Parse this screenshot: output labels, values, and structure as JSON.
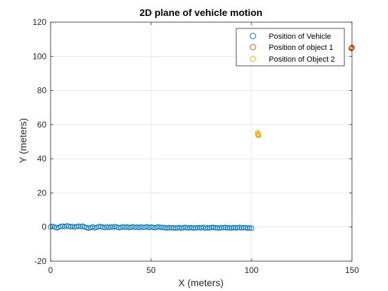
{
  "chart_data": {
    "type": "scatter",
    "title": "2D plane of vehicle motion",
    "xlabel": "X (meters)",
    "ylabel": "Y (meters)",
    "xlim": [
      0,
      150
    ],
    "ylim": [
      -20,
      120
    ],
    "xticks": [
      "0",
      "50",
      "100",
      "150"
    ],
    "yticks": [
      "-20",
      "0",
      "20",
      "40",
      "60",
      "80",
      "100",
      "120"
    ],
    "grid": true,
    "legend_position": "top-right",
    "series": [
      {
        "name": "Position of Vehicle",
        "color": "#0072BD",
        "marker": "circle",
        "x": [
          0,
          1,
          2,
          3,
          4,
          5,
          6,
          7,
          8,
          9,
          10,
          11,
          12,
          13,
          14,
          15,
          16,
          17,
          18,
          19,
          20,
          21,
          22,
          23,
          24,
          25,
          26,
          27,
          28,
          29,
          30,
          31,
          32,
          33,
          34,
          35,
          36,
          37,
          38,
          39,
          40,
          41,
          42,
          43,
          44,
          45,
          46,
          47,
          48,
          49,
          50,
          51,
          52,
          53,
          54,
          55,
          56,
          57,
          58,
          59,
          60,
          61,
          62,
          63,
          64,
          65,
          66,
          67,
          68,
          69,
          70,
          71,
          72,
          73,
          74,
          75,
          76,
          77,
          78,
          79,
          80,
          81,
          82,
          83,
          84,
          85,
          86,
          87,
          88,
          89,
          90,
          91,
          92,
          93,
          94,
          95,
          96,
          97,
          98,
          99,
          100
        ],
        "y": [
          0.1,
          0.4,
          0.0,
          -0.5,
          -0.2,
          0.3,
          0.6,
          0.2,
          0.7,
          0.5,
          0.1,
          0.4,
          -0.1,
          0.3,
          0.6,
          0.2,
          0.5,
          0.0,
          -0.4,
          -0.6,
          -0.3,
          0.1,
          -0.5,
          -0.2,
          0.3,
          0.2,
          0.0,
          -0.4,
          0.2,
          -0.3,
          0.1,
          -0.1,
          0.3,
          0.0,
          -0.4,
          -0.2,
          0.2,
          -0.1,
          0.1,
          -0.3,
          -0.1,
          0.2,
          -0.2,
          0.0,
          -0.3,
          0.1,
          -0.2,
          -0.1,
          0.2,
          -0.3,
          0.0,
          -0.2,
          -0.4,
          -0.1,
          0.1,
          -0.3,
          -0.2,
          -0.4,
          -0.6,
          -0.3,
          -0.5,
          -0.4,
          -0.6,
          -0.5,
          -0.3,
          -0.6,
          -0.4,
          -0.2,
          -0.5,
          -0.4,
          -0.3,
          -0.6,
          -0.5,
          -0.4,
          -0.3,
          -0.5,
          -0.2,
          -0.6,
          -0.4,
          -0.5,
          -0.3,
          -0.2,
          -0.4,
          -0.5,
          -0.6,
          -0.3,
          -0.4,
          -0.2,
          -0.5,
          -0.4,
          -0.6,
          -0.3,
          -0.5,
          -0.4,
          -0.2,
          -0.5,
          -0.3,
          -0.4,
          -0.6,
          -0.5,
          -0.7
        ]
      },
      {
        "name": "Position of object 1",
        "color": "#D95319",
        "marker": "circle",
        "x": [
          149.6,
          149.8,
          150.0,
          149.7,
          149.9,
          150.1
        ],
        "y": [
          104.5,
          105.0,
          105.3,
          104.9,
          104.7,
          105.1
        ]
      },
      {
        "name": "Position of Object 2",
        "color": "#EDB120",
        "marker": "circle",
        "x": [
          103.0,
          103.3,
          103.5,
          103.1,
          103.4,
          103.6
        ],
        "y": [
          55.2,
          54.6,
          54.0,
          53.8,
          54.3,
          53.6
        ]
      }
    ]
  }
}
